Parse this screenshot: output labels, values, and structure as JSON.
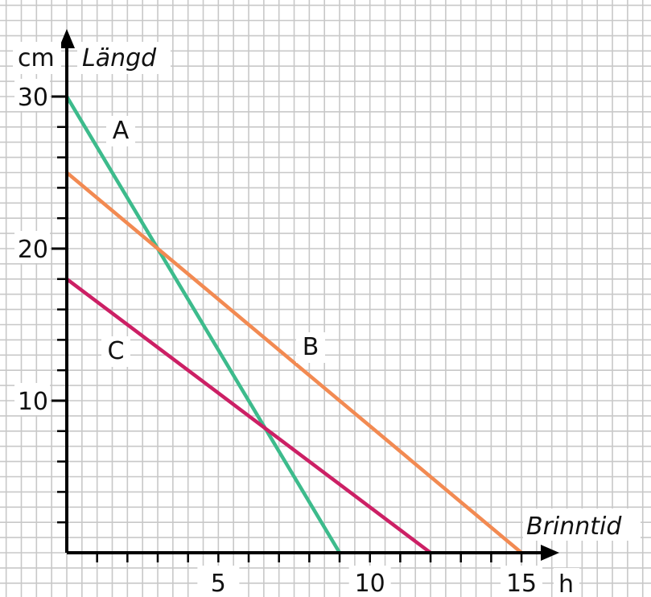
{
  "chart_data": {
    "type": "line",
    "ylabel": "Längd",
    "y_unit": "cm",
    "xlabel": "Brinntid",
    "x_unit": "h",
    "xlim": [
      0,
      16
    ],
    "ylim": [
      0,
      32
    ],
    "x_ticks": [
      5,
      10,
      15
    ],
    "y_ticks": [
      10,
      20,
      30
    ],
    "grid": true,
    "series": [
      {
        "name": "A",
        "color": "#3dbb8c",
        "x": [
          0,
          9
        ],
        "y": [
          30,
          0
        ]
      },
      {
        "name": "B",
        "color": "#f28a52",
        "x": [
          0,
          15
        ],
        "y": [
          25,
          0
        ]
      },
      {
        "name": "C",
        "color": "#cc2065",
        "x": [
          0,
          12
        ],
        "y": [
          18,
          0
        ]
      }
    ]
  }
}
